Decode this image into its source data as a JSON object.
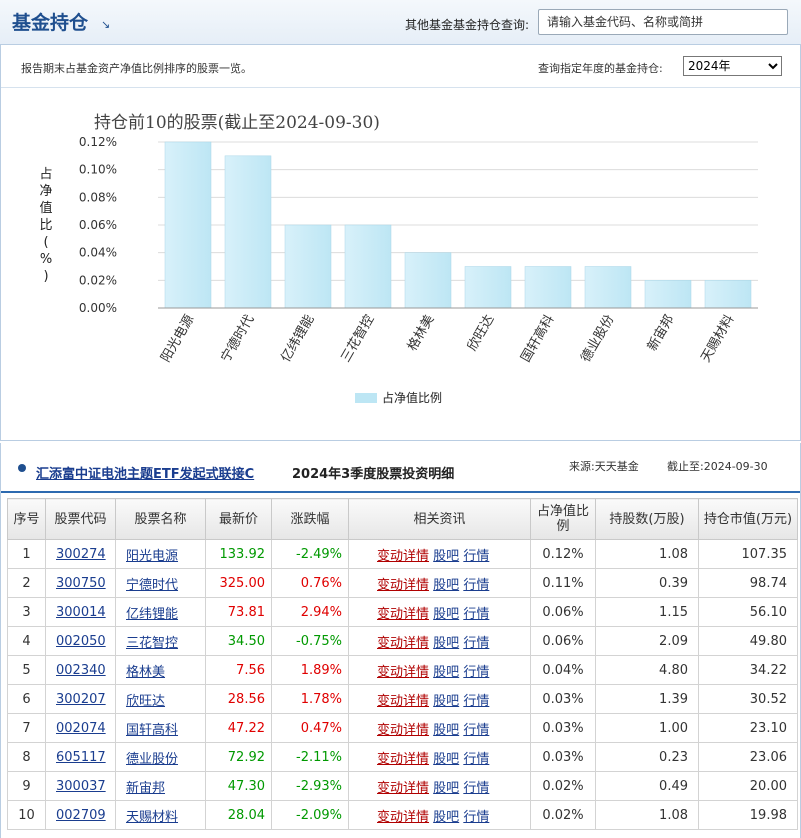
{
  "header": {
    "title": "基金持仓",
    "title_arrow": "↘",
    "search_label": "其他基金基金持仓查询:",
    "search_placeholder": "请输入基金代码、名称或简拼"
  },
  "subbar": {
    "description": "报告期末占基金资产净值比例排序的股票一览。",
    "year_label": "查询指定年度的基金持仓:",
    "year_selected": "2024年"
  },
  "chart_data": {
    "type": "bar",
    "title": "持仓前10的股票(截止至2024-09-30)",
    "ylabel": "占净值比(%)",
    "categories": [
      "阳光电源",
      "宁德时代",
      "亿纬锂能",
      "三花智控",
      "格林美",
      "欣旺达",
      "国轩高科",
      "德业股份",
      "新宙邦",
      "天赐材料"
    ],
    "values": [
      0.12,
      0.11,
      0.06,
      0.06,
      0.04,
      0.03,
      0.03,
      0.03,
      0.02,
      0.02
    ],
    "ylim": [
      0,
      0.12
    ],
    "yticks": [
      "0.00%",
      "0.02%",
      "0.04%",
      "0.06%",
      "0.08%",
      "0.10%",
      "0.12%"
    ],
    "legend": "占净值比例",
    "legend_position": "bottom",
    "grid": true,
    "bar_color": "#bde6f4"
  },
  "detail": {
    "fund_name": "汇添富中证电池主题ETF发起式联接C",
    "period_label": "2024年3季度股票投资明细",
    "source": "来源:天天基金",
    "cutoff": "截止至:2024-09-30",
    "columns": [
      "序号",
      "股票代码",
      "股票名称",
      "最新价",
      "涨跌幅",
      "相关资讯",
      "占净值比例",
      "持股数(万股)",
      "持仓市值(万元)"
    ],
    "link_labels": [
      "变动详情",
      "股吧",
      "行情"
    ],
    "rows": [
      {
        "idx": "1",
        "code": "300274",
        "name": "阳光电源",
        "price": "133.92",
        "change": "-2.49%",
        "dir": "down",
        "pct": "0.12%",
        "shares": "1.08",
        "value": "107.35"
      },
      {
        "idx": "2",
        "code": "300750",
        "name": "宁德时代",
        "price": "325.00",
        "change": "0.76%",
        "dir": "up",
        "pct": "0.11%",
        "shares": "0.39",
        "value": "98.74"
      },
      {
        "idx": "3",
        "code": "300014",
        "name": "亿纬锂能",
        "price": "73.81",
        "change": "2.94%",
        "dir": "up",
        "pct": "0.06%",
        "shares": "1.15",
        "value": "56.10"
      },
      {
        "idx": "4",
        "code": "002050",
        "name": "三花智控",
        "price": "34.50",
        "change": "-0.75%",
        "dir": "down",
        "pct": "0.06%",
        "shares": "2.09",
        "value": "49.80"
      },
      {
        "idx": "5",
        "code": "002340",
        "name": "格林美",
        "price": "7.56",
        "change": "1.89%",
        "dir": "up",
        "pct": "0.04%",
        "shares": "4.80",
        "value": "34.22"
      },
      {
        "idx": "6",
        "code": "300207",
        "name": "欣旺达",
        "price": "28.56",
        "change": "1.78%",
        "dir": "up",
        "pct": "0.03%",
        "shares": "1.39",
        "value": "30.52"
      },
      {
        "idx": "7",
        "code": "002074",
        "name": "国轩高科",
        "price": "47.22",
        "change": "0.47%",
        "dir": "up",
        "pct": "0.03%",
        "shares": "1.00",
        "value": "23.10"
      },
      {
        "idx": "8",
        "code": "605117",
        "name": "德业股份",
        "price": "72.92",
        "change": "-2.11%",
        "dir": "down",
        "pct": "0.03%",
        "shares": "0.23",
        "value": "23.06"
      },
      {
        "idx": "9",
        "code": "300037",
        "name": "新宙邦",
        "price": "47.30",
        "change": "-2.93%",
        "dir": "down",
        "pct": "0.02%",
        "shares": "0.49",
        "value": "20.00"
      },
      {
        "idx": "10",
        "code": "002709",
        "name": "天赐材料",
        "price": "28.04",
        "change": "-2.09%",
        "dir": "down",
        "pct": "0.02%",
        "shares": "1.08",
        "value": "19.98"
      }
    ]
  }
}
